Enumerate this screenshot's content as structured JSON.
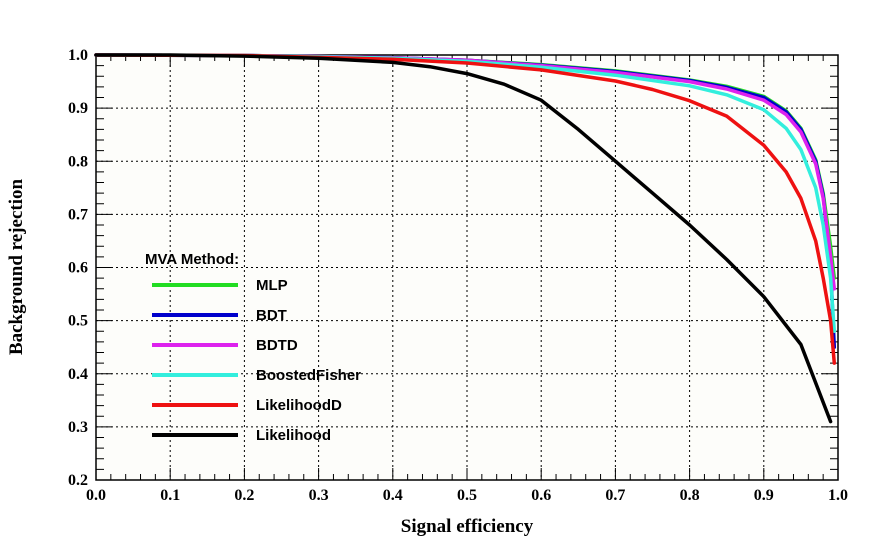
{
  "chart_data": {
    "type": "line",
    "title": "",
    "xlabel": "Signal efficiency",
    "ylabel": "Background rejection",
    "xlim": [
      0.0,
      1.0
    ],
    "ylim": [
      0.2,
      1.0
    ],
    "grid": true,
    "x_ticks": [
      "0.0",
      "0.1",
      "0.2",
      "0.3",
      "0.4",
      "0.5",
      "0.6",
      "0.7",
      "0.8",
      "0.9",
      "1.0"
    ],
    "y_ticks": [
      "0.2",
      "0.3",
      "0.4",
      "0.5",
      "0.6",
      "0.7",
      "0.8",
      "0.9",
      "1.0"
    ],
    "legend_title": "MVA Method:",
    "legend_placement": "center-left",
    "series": [
      {
        "name": "MLP",
        "color": "#22dd22",
        "x": [
          0,
          0.2,
          0.4,
          0.5,
          0.6,
          0.7,
          0.8,
          0.85,
          0.9,
          0.93,
          0.95,
          0.97,
          0.98,
          0.99,
          0.995
        ],
        "y": [
          1.0,
          0.999,
          0.995,
          0.99,
          0.982,
          0.97,
          0.953,
          0.941,
          0.922,
          0.895,
          0.862,
          0.803,
          0.74,
          0.64,
          0.58
        ]
      },
      {
        "name": "BDT",
        "color": "#0000cc",
        "x": [
          0,
          0.2,
          0.4,
          0.5,
          0.6,
          0.7,
          0.8,
          0.85,
          0.9,
          0.93,
          0.95,
          0.97,
          0.98,
          0.99,
          0.995
        ],
        "y": [
          1.0,
          0.999,
          0.995,
          0.99,
          0.981,
          0.969,
          0.952,
          0.939,
          0.92,
          0.893,
          0.86,
          0.8,
          0.735,
          0.6,
          0.45
        ]
      },
      {
        "name": "BDTD",
        "color": "#dd22ee",
        "x": [
          0,
          0.2,
          0.4,
          0.5,
          0.6,
          0.7,
          0.8,
          0.85,
          0.9,
          0.93,
          0.95,
          0.97,
          0.98,
          0.99,
          0.995
        ],
        "y": [
          1.0,
          0.999,
          0.995,
          0.99,
          0.98,
          0.967,
          0.95,
          0.936,
          0.915,
          0.888,
          0.855,
          0.795,
          0.73,
          0.62,
          0.56
        ]
      },
      {
        "name": "BoostedFisher",
        "color": "#33eedd",
        "x": [
          0,
          0.2,
          0.4,
          0.5,
          0.6,
          0.7,
          0.8,
          0.85,
          0.9,
          0.93,
          0.95,
          0.97,
          0.98,
          0.99,
          0.995
        ],
        "y": [
          1.0,
          0.999,
          0.994,
          0.988,
          0.977,
          0.962,
          0.942,
          0.925,
          0.897,
          0.862,
          0.822,
          0.75,
          0.68,
          0.58,
          0.48
        ]
      },
      {
        "name": "LikelihoodD",
        "color": "#ee1111",
        "x": [
          0,
          0.2,
          0.4,
          0.5,
          0.6,
          0.7,
          0.75,
          0.8,
          0.85,
          0.9,
          0.93,
          0.95,
          0.97,
          0.98,
          0.99,
          0.995
        ],
        "y": [
          1.0,
          0.999,
          0.992,
          0.985,
          0.972,
          0.951,
          0.935,
          0.914,
          0.885,
          0.83,
          0.78,
          0.73,
          0.65,
          0.58,
          0.5,
          0.42
        ]
      },
      {
        "name": "Likelihood",
        "color": "#000000",
        "x": [
          0,
          0.1,
          0.2,
          0.3,
          0.4,
          0.45,
          0.5,
          0.55,
          0.6,
          0.65,
          0.7,
          0.75,
          0.8,
          0.85,
          0.9,
          0.95,
          0.99
        ],
        "y": [
          1.0,
          1.0,
          0.998,
          0.994,
          0.986,
          0.978,
          0.965,
          0.945,
          0.915,
          0.86,
          0.8,
          0.74,
          0.68,
          0.615,
          0.545,
          0.455,
          0.31
        ]
      }
    ]
  }
}
